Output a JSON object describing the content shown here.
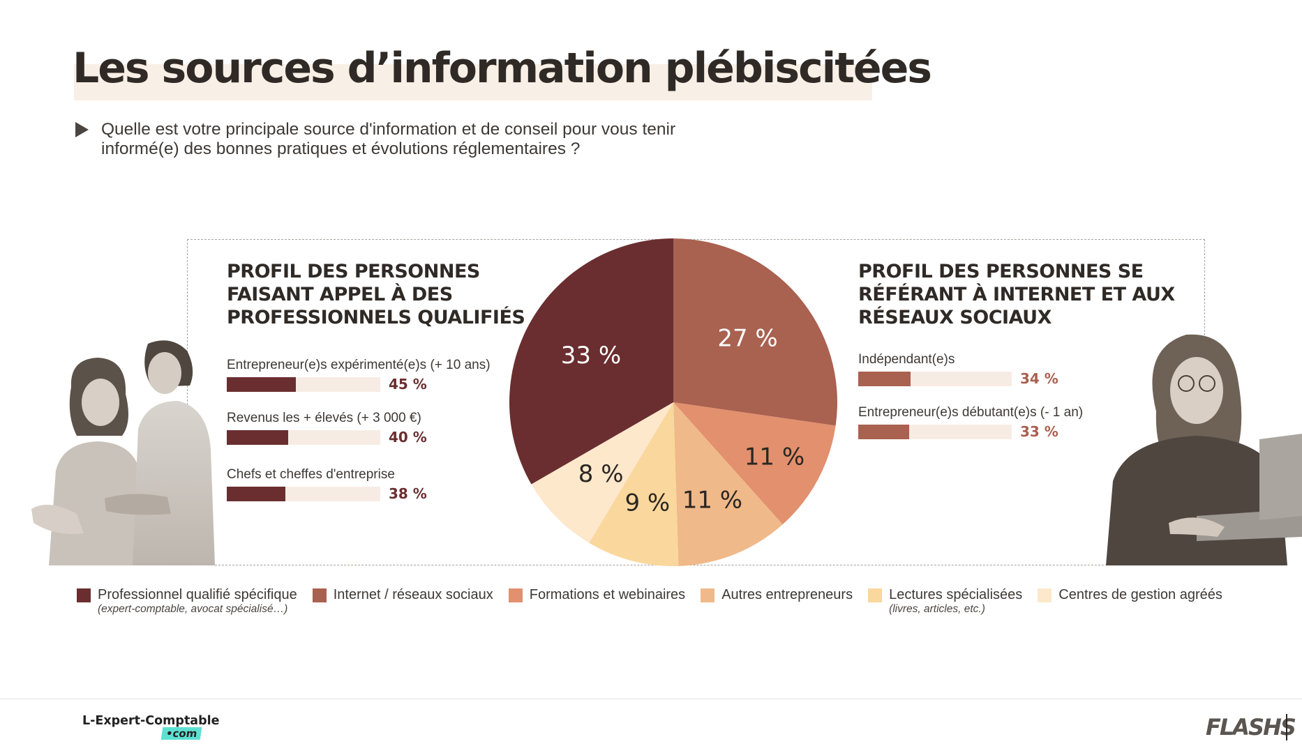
{
  "page": {
    "title": "Les sources d’information plébiscitées",
    "question": "Quelle est votre principale source d'information et de conseil pour vous tenir informé(e) des bonnes pratiques et évolutions réglementaires ?"
  },
  "left_profile": {
    "title": "PROFIL DES PERSONNES\nFAISANT APPEL À DES\nPROFESSIONNELS QUALIFIÉS",
    "color": "#6a2e30",
    "stats": [
      {
        "label": "Entrepreneur(e)s expérimenté(e)s (+ 10 ans)",
        "value": 45,
        "value_text": "45 %"
      },
      {
        "label": "Revenus les + élevés (+ 3 000 €)",
        "value": 40,
        "value_text": "40 %"
      },
      {
        "label": "Chefs et cheffes d'entreprise",
        "value": 38,
        "value_text": "38 %"
      }
    ]
  },
  "right_profile": {
    "title": "PROFIL DES PERSONNES SE\nRÉFÉRANT À INTERNET ET AUX\nRÉSEAUX SOCIAUX",
    "color": "#a96150",
    "stats": [
      {
        "label": "Indépendant(e)s",
        "value": 34,
        "value_text": "34 %"
      },
      {
        "label": "Entrepreneur(e)s débutant(e)s (- 1 an)",
        "value": 33,
        "value_text": "33 %"
      }
    ]
  },
  "chart_data": {
    "type": "pie",
    "slices": [
      {
        "name": "Internet / réseaux sociaux",
        "value": 27,
        "label": "27 %",
        "color": "#a96150",
        "label_color": "#ffffff"
      },
      {
        "name": "Formations et webinaires",
        "value": 11,
        "label": "11 %",
        "color": "#e2906d",
        "label_color": "#2b2622"
      },
      {
        "name": "Autres entrepreneurs",
        "value": 11,
        "label": "11 %",
        "color": "#f0b989",
        "label_color": "#2b2622"
      },
      {
        "name": "Lectures spécialisées",
        "value": 9,
        "label": "9 %",
        "color": "#fad79c",
        "label_color": "#2b2622"
      },
      {
        "name": "Centres de gestion agréés",
        "value": 8,
        "label": "8 %",
        "color": "#fde8cc",
        "label_color": "#2b2622"
      },
      {
        "name": "Professionnel qualifié spécifique",
        "value": 33,
        "label": "33 %",
        "color": "#6a2e30",
        "label_color": "#ffffff"
      }
    ]
  },
  "legend": [
    {
      "label": "Professionnel qualifié spécifique",
      "note": "(expert-comptable, avocat spécialisé…)",
      "color": "#6a2e30"
    },
    {
      "label": "Internet / réseaux sociaux",
      "note": "",
      "color": "#a96150"
    },
    {
      "label": "Formations et webinaires",
      "note": "",
      "color": "#e2906d"
    },
    {
      "label": "Autres entrepreneurs",
      "note": "",
      "color": "#f0b989"
    },
    {
      "label": "Lectures spécialisées",
      "note": "(livres, articles, etc.)",
      "color": "#fad79c"
    },
    {
      "label": "Centres de gestion agréés",
      "note": "",
      "color": "#fde8cc"
    }
  ],
  "footer": {
    "logo_text": "L-Expert-Comptable",
    "logo_suffix": "•com",
    "brand_right": "FLASHS"
  }
}
